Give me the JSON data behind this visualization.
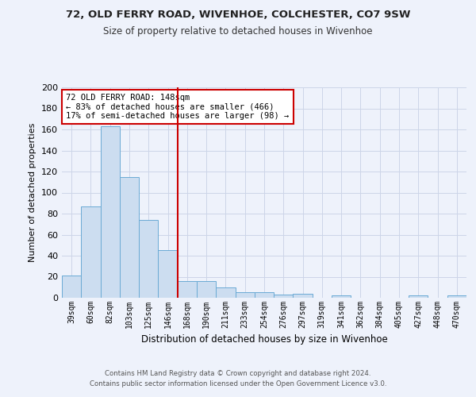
{
  "title1": "72, OLD FERRY ROAD, WIVENHOE, COLCHESTER, CO7 9SW",
  "title2": "Size of property relative to detached houses in Wivenhoe",
  "xlabel": "Distribution of detached houses by size in Wivenhoe",
  "ylabel": "Number of detached properties",
  "bar_labels": [
    "39sqm",
    "60sqm",
    "82sqm",
    "103sqm",
    "125sqm",
    "146sqm",
    "168sqm",
    "190sqm",
    "211sqm",
    "233sqm",
    "254sqm",
    "276sqm",
    "297sqm",
    "319sqm",
    "341sqm",
    "362sqm",
    "384sqm",
    "405sqm",
    "427sqm",
    "448sqm",
    "470sqm"
  ],
  "bar_values": [
    21,
    87,
    163,
    115,
    74,
    45,
    16,
    16,
    10,
    5,
    5,
    3,
    4,
    0,
    2,
    0,
    0,
    0,
    2,
    0,
    2
  ],
  "bar_color": "#ccddf0",
  "bar_edge_color": "#6aaad4",
  "grid_color": "#ccd5e8",
  "vline_x": 5.5,
  "vline_color": "#cc0000",
  "annotation_text": "72 OLD FERRY ROAD: 148sqm\n← 83% of detached houses are smaller (466)\n17% of semi-detached houses are larger (98) →",
  "annotation_box_color": "#ffffff",
  "annotation_box_edge": "#cc0000",
  "footer1": "Contains HM Land Registry data © Crown copyright and database right 2024.",
  "footer2": "Contains public sector information licensed under the Open Government Licence v3.0.",
  "ylim": [
    0,
    200
  ],
  "yticks": [
    0,
    20,
    40,
    60,
    80,
    100,
    120,
    140,
    160,
    180,
    200
  ],
  "bg_color": "#eef2fb"
}
